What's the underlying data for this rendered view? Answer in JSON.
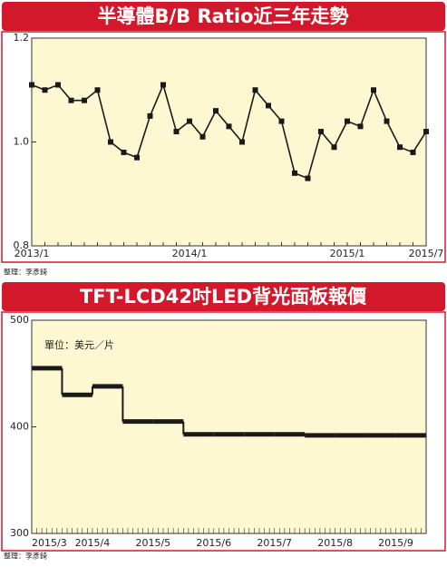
{
  "chart_data": [
    {
      "type": "line",
      "title": "半導體B/B Ratio近三年走勢",
      "source": "整理：李彥錡",
      "categories": [
        "2013/1",
        null,
        null,
        null,
        null,
        null,
        null,
        null,
        null,
        null,
        null,
        null,
        "2014/1",
        null,
        null,
        null,
        null,
        null,
        null,
        null,
        null,
        null,
        null,
        null,
        "2015/1",
        null,
        null,
        null,
        null,
        null,
        "2015/7"
      ],
      "series": [
        {
          "color": "#1a1a1a",
          "values": [
            1.11,
            1.1,
            1.11,
            1.08,
            1.08,
            1.1,
            1.0,
            0.98,
            0.97,
            1.05,
            1.11,
            1.02,
            1.04,
            1.01,
            1.06,
            1.03,
            1.0,
            1.1,
            1.07,
            1.04,
            0.94,
            0.93,
            1.02,
            0.99,
            1.04,
            1.03,
            1.1,
            1.04,
            0.99,
            0.98,
            1.02
          ]
        }
      ],
      "ylim": [
        0.8,
        1.2
      ],
      "yticks": [
        0.8,
        {
          "value": 1,
          "label": "1.0"
        },
        1.2
      ],
      "grid": false,
      "background": "#fdf8d2"
    },
    {
      "type": "step",
      "title": "TFT-LCD42吋LED背光面板報價",
      "source": "整理：李彥錡",
      "unit_label": "單位：美元／片",
      "categories": [
        "2015/3",
        null,
        "2015/4",
        null,
        "2015/5",
        null,
        "2015/6",
        null,
        "2015/7",
        null,
        "2015/8",
        null,
        "2015/9"
      ],
      "series": [
        {
          "color": "#1a1a1a",
          "values": [
            455,
            430,
            438,
            405,
            405,
            393,
            393,
            393,
            393,
            392,
            392,
            392,
            392
          ]
        }
      ],
      "ylim": [
        300,
        500
      ],
      "yticks": [
        300,
        400,
        500
      ],
      "grid": false,
      "background": "#fdf8d2"
    }
  ]
}
